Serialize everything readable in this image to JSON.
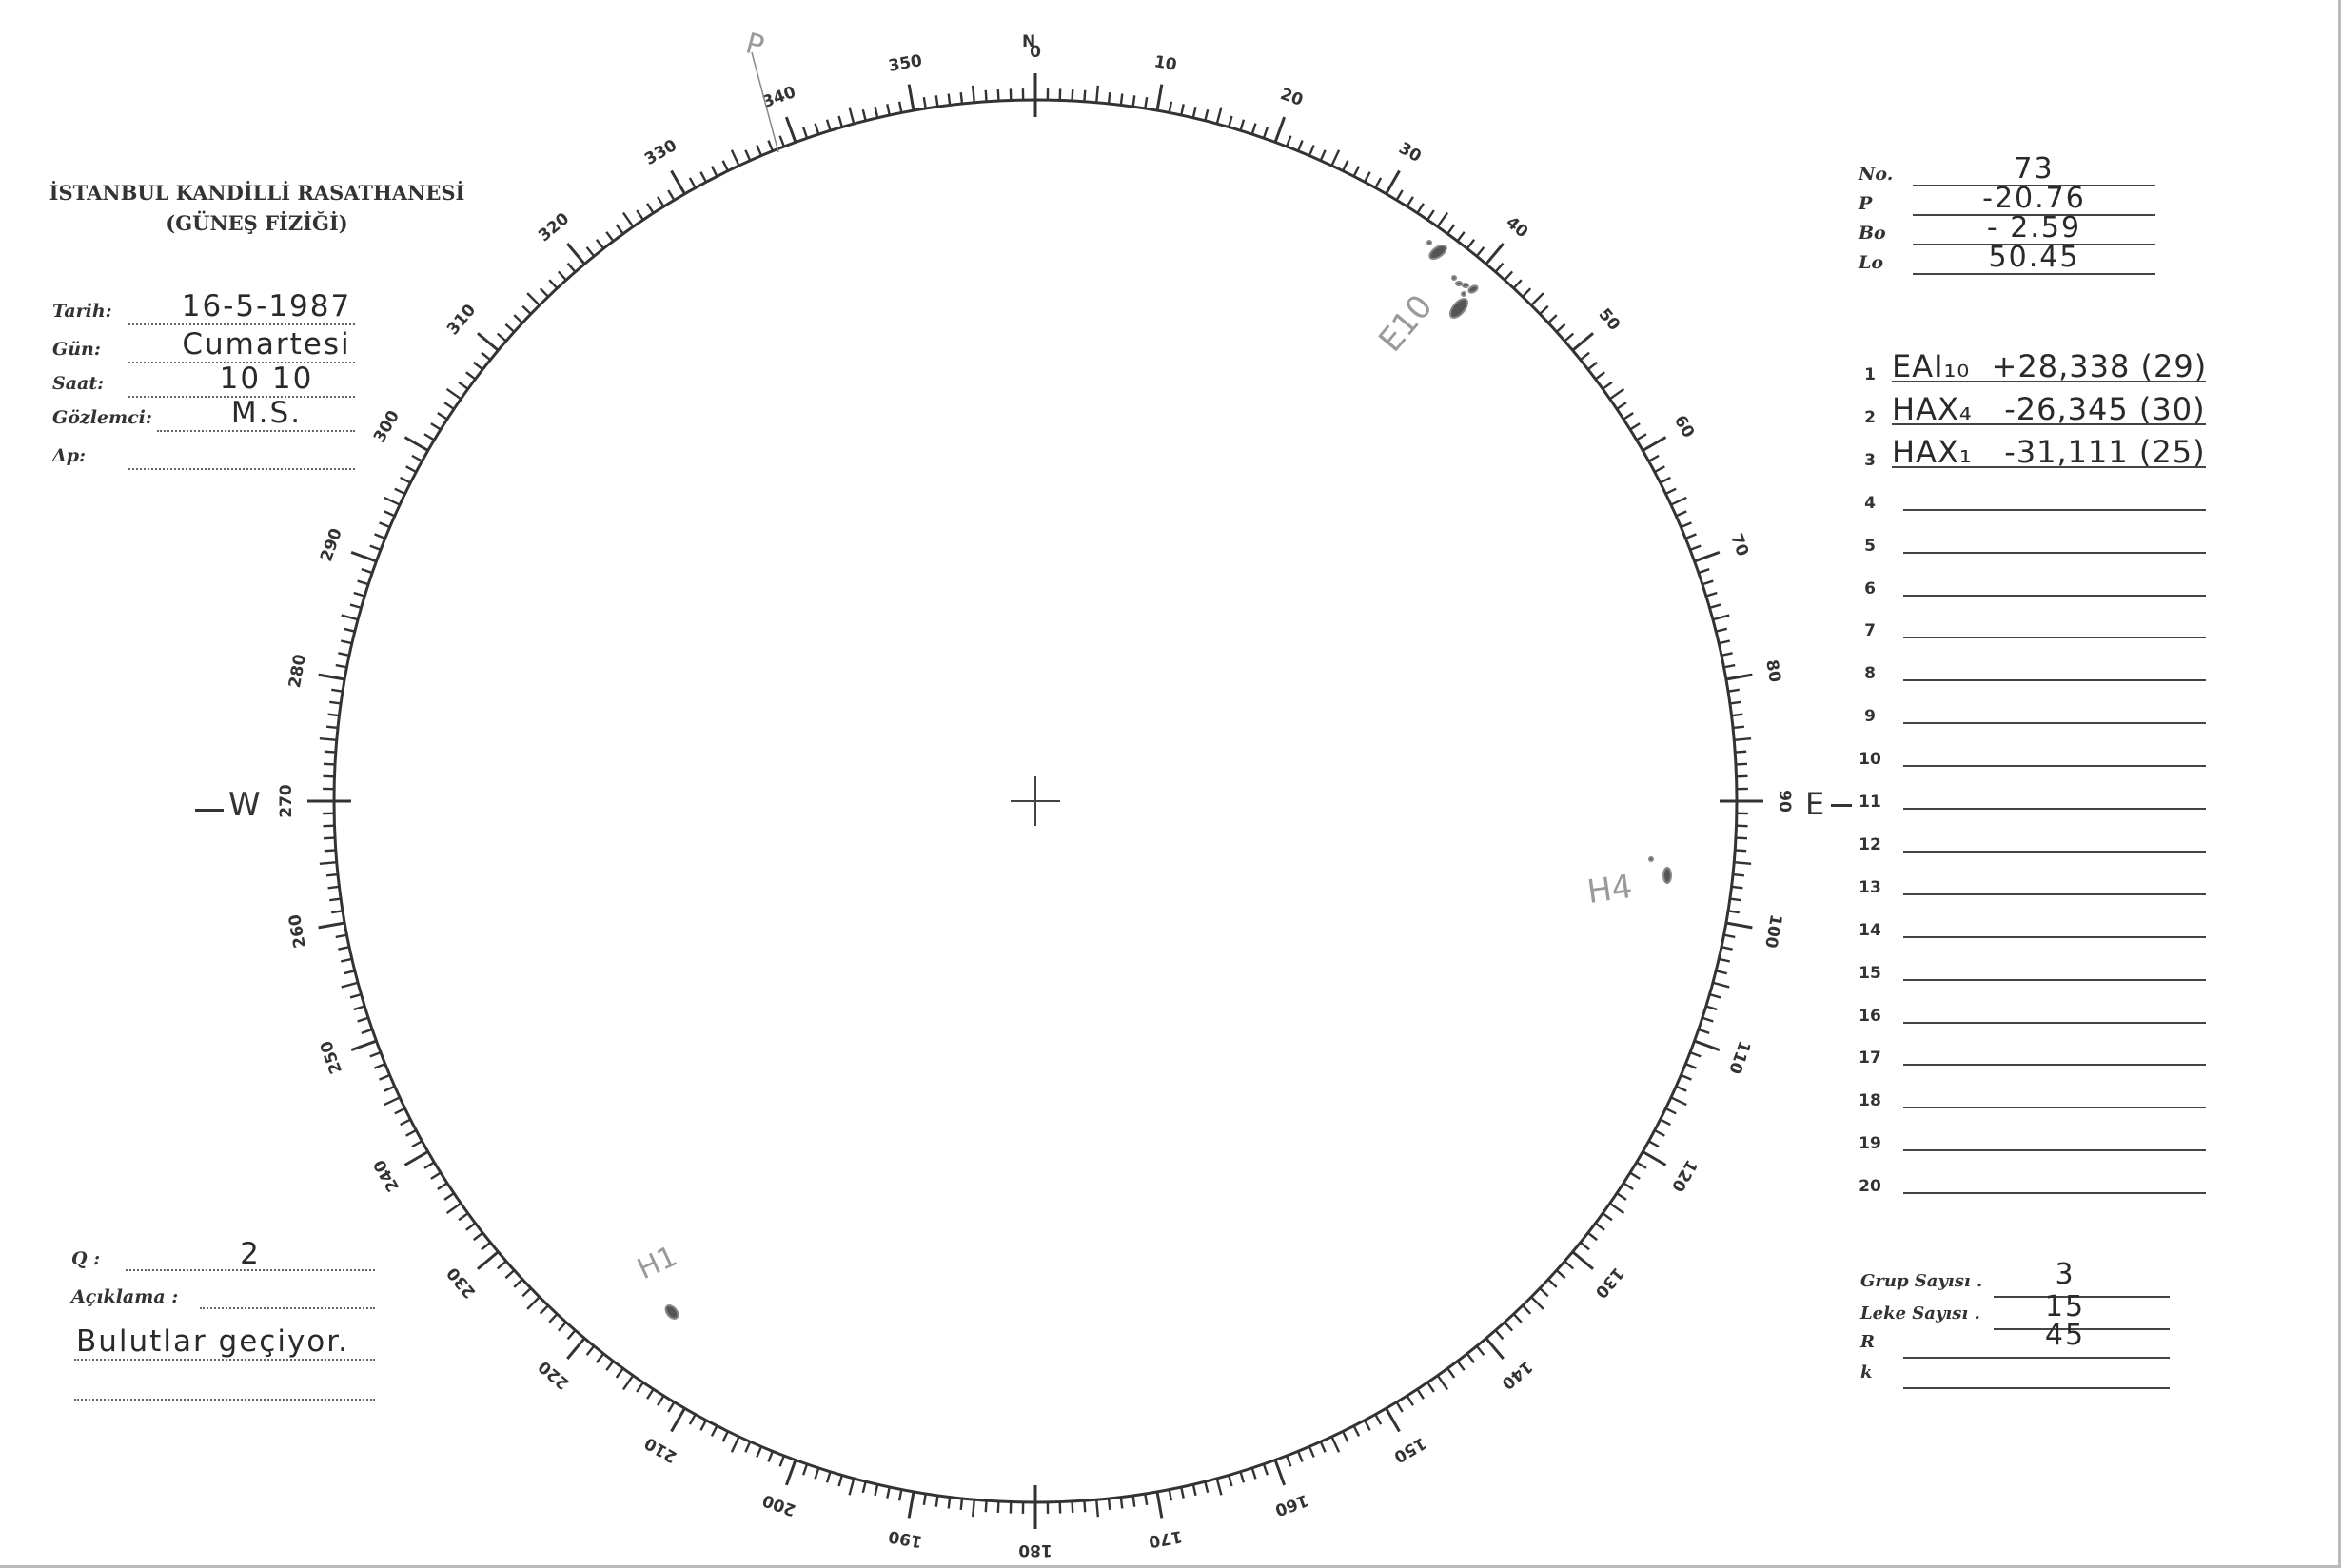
{
  "header": {
    "title": "İSTANBUL KANDİLLİ RASATHANESİ",
    "subtitle": "(GÜNEŞ FİZİĞİ)"
  },
  "observation": {
    "fields": [
      {
        "label": "Tarih:",
        "value": "16-5-1987"
      },
      {
        "label": "Gün:",
        "value": "Cumartesi"
      },
      {
        "label": "Saat:",
        "value": "10 10"
      },
      {
        "label": "Gözlemci:",
        "value": "M.S."
      },
      {
        "label": "Δp:",
        "value": ""
      }
    ]
  },
  "parameters": [
    {
      "label": "No.",
      "value": "73"
    },
    {
      "label": "P",
      "value": "-20.76"
    },
    {
      "label": "Bo",
      "value": "- 2.59"
    },
    {
      "label": "Lo",
      "value": "50.45"
    }
  ],
  "groups": [
    {
      "n": "1",
      "value": "EAI₁₀  +28,338 (29)"
    },
    {
      "n": "2",
      "value": "HAX₄   -26,345 (30)"
    },
    {
      "n": "3",
      "value": "HAX₁   -31,111 (25)"
    },
    {
      "n": "4",
      "value": ""
    },
    {
      "n": "5",
      "value": ""
    },
    {
      "n": "6",
      "value": ""
    },
    {
      "n": "7",
      "value": ""
    },
    {
      "n": "8",
      "value": ""
    },
    {
      "n": "9",
      "value": ""
    },
    {
      "n": "10",
      "value": ""
    },
    {
      "n": "11",
      "value": ""
    },
    {
      "n": "12",
      "value": ""
    },
    {
      "n": "13",
      "value": ""
    },
    {
      "n": "14",
      "value": ""
    },
    {
      "n": "15",
      "value": ""
    },
    {
      "n": "16",
      "value": ""
    },
    {
      "n": "17",
      "value": ""
    },
    {
      "n": "18",
      "value": ""
    },
    {
      "n": "19",
      "value": ""
    },
    {
      "n": "20",
      "value": ""
    }
  ],
  "quality": {
    "label": "Q :",
    "value": "2"
  },
  "remarks": {
    "label": "Açıklama :",
    "line1": "Bulutlar geçiyor.",
    "line2": ""
  },
  "counts": [
    {
      "label": "Grup Sayısı .",
      "value": "3"
    },
    {
      "label": "Leke Sayısı .",
      "value": "15"
    },
    {
      "label": "R",
      "value": "45"
    },
    {
      "label": "k",
      "value": ""
    }
  ],
  "dial": {
    "north_letter": "N",
    "west_letter": "W",
    "east_letter": "E",
    "tick_labels": [
      "0",
      "10",
      "20",
      "30",
      "40",
      "50",
      "60",
      "70",
      "80",
      "90",
      "100",
      "110",
      "120",
      "130",
      "140",
      "150",
      "160",
      "170",
      "180",
      "190",
      "200",
      "210",
      "220",
      "230",
      "240",
      "250",
      "260",
      "270",
      "280",
      "290",
      "300",
      "310",
      "320",
      "330",
      "340",
      "350"
    ]
  },
  "annotations": {
    "p_axis": "P",
    "group_e": "E10",
    "group_h4": "H4",
    "group_h1": "H1"
  }
}
